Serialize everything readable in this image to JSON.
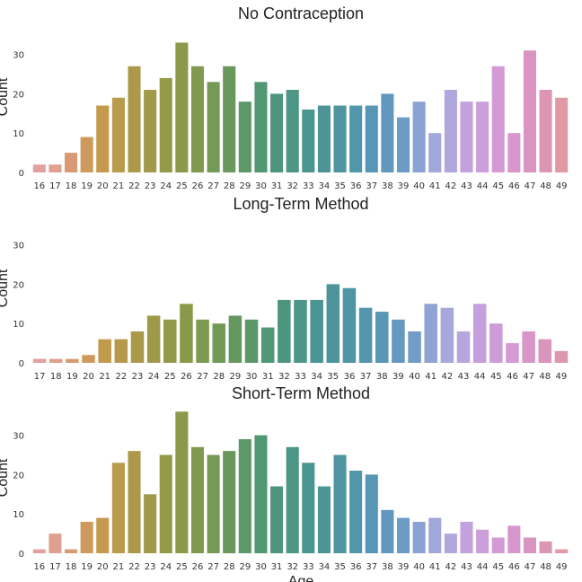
{
  "chart_data": [
    {
      "type": "bar",
      "title": "No Contraception",
      "xlabel": "",
      "ylabel": "Count",
      "ylim": [
        0,
        38
      ],
      "yticks": [
        0,
        10,
        20,
        30
      ],
      "grid": false,
      "categories": [
        "16",
        "17",
        "18",
        "19",
        "20",
        "21",
        "22",
        "23",
        "24",
        "25",
        "26",
        "27",
        "28",
        "29",
        "30",
        "31",
        "32",
        "33",
        "34",
        "35",
        "36",
        "37",
        "38",
        "39",
        "40",
        "41",
        "42",
        "43",
        "44",
        "45",
        "46",
        "47",
        "48",
        "49"
      ],
      "values": [
        2,
        2,
        5,
        9,
        17,
        19,
        27,
        21,
        24,
        33,
        27,
        23,
        27,
        18,
        23,
        20,
        21,
        16,
        17,
        17,
        17,
        17,
        20,
        14,
        18,
        10,
        21,
        18,
        18,
        27,
        10,
        31,
        21,
        19
      ],
      "colors": [
        "#e3a0a1",
        "#e0a08f",
        "#d89a74",
        "#ce9a5c",
        "#c49a4d",
        "#b89b4b",
        "#ac9a4a",
        "#a09a49",
        "#959a49",
        "#8b9a49",
        "#7f9a4f",
        "#759a55",
        "#68985c",
        "#5c9868",
        "#519772",
        "#4d967c",
        "#4c9686",
        "#4b9590",
        "#4d9498",
        "#4f94a1",
        "#5196aa",
        "#5796b4",
        "#6298bd",
        "#6e9ac6",
        "#8ba3d2",
        "#a2a7da",
        "#b0a7dd",
        "#c2a1dc",
        "#cc9edb",
        "#d39ad6",
        "#d897cc",
        "#d995c2",
        "#dc96b3",
        "#df9aa6"
      ]
    },
    {
      "type": "bar",
      "title": "Long-Term Method",
      "xlabel": "",
      "ylabel": "Count",
      "ylim": [
        0,
        38
      ],
      "yticks": [
        0,
        10,
        20,
        30
      ],
      "grid": false,
      "categories": [
        "17",
        "18",
        "19",
        "20",
        "21",
        "22",
        "23",
        "24",
        "25",
        "26",
        "27",
        "28",
        "29",
        "30",
        "31",
        "32",
        "33",
        "34",
        "35",
        "36",
        "37",
        "38",
        "39",
        "40",
        "41",
        "42",
        "43",
        "44",
        "45",
        "46",
        "47",
        "48",
        "49"
      ],
      "values": [
        1,
        1,
        1,
        2,
        6,
        6,
        8,
        12,
        11,
        15,
        11,
        10,
        12,
        11,
        9,
        16,
        16,
        16,
        20,
        19,
        14,
        13,
        11,
        8,
        15,
        14,
        8,
        15,
        10,
        5,
        8,
        6,
        3
      ],
      "colors": [
        "#e3a0a1",
        "#df9f8c",
        "#d79b72",
        "#cd9a5b",
        "#c29a4c",
        "#b69a4b",
        "#aa9a4a",
        "#9e9a49",
        "#939a49",
        "#889a49",
        "#7c9a50",
        "#729a57",
        "#65985f",
        "#5a986a",
        "#509775",
        "#4c967f",
        "#4c9689",
        "#4b9593",
        "#4d949b",
        "#5095a4",
        "#5396ae",
        "#5a97b7",
        "#6599c0",
        "#739cc9",
        "#90a4d3",
        "#a6a8db",
        "#b6a6dd",
        "#c6a0dc",
        "#cf9cda",
        "#d599d3",
        "#d996c8",
        "#da95bd",
        "#dd97b0"
      ]
    },
    {
      "type": "bar",
      "title": "Short-Term Method",
      "xlabel": "Age",
      "ylabel": "Count",
      "ylim": [
        0,
        38
      ],
      "yticks": [
        0,
        10,
        20,
        30
      ],
      "grid": false,
      "categories": [
        "16",
        "17",
        "18",
        "19",
        "20",
        "21",
        "22",
        "23",
        "24",
        "25",
        "26",
        "27",
        "28",
        "29",
        "30",
        "31",
        "32",
        "33",
        "34",
        "35",
        "36",
        "37",
        "38",
        "39",
        "40",
        "41",
        "42",
        "43",
        "44",
        "45",
        "46",
        "47",
        "48",
        "49"
      ],
      "values": [
        1,
        5,
        1,
        8,
        9,
        23,
        26,
        15,
        25,
        36,
        27,
        25,
        26,
        29,
        30,
        17,
        27,
        23,
        17,
        25,
        21,
        20,
        11,
        9,
        8,
        9,
        5,
        8,
        6,
        4,
        7,
        4,
        3,
        1
      ],
      "colors": [
        "#e3a0a1",
        "#e0a08f",
        "#d89a74",
        "#ce9a5c",
        "#c49a4d",
        "#b89b4b",
        "#ac9a4a",
        "#a09a49",
        "#959a49",
        "#8b9a49",
        "#7f9a4f",
        "#759a55",
        "#68985c",
        "#5c9868",
        "#519772",
        "#4d967c",
        "#4c9686",
        "#4b9590",
        "#4d9498",
        "#4f94a1",
        "#5196aa",
        "#5796b4",
        "#6298bd",
        "#6e9ac6",
        "#8ba3d2",
        "#a2a7da",
        "#b0a7dd",
        "#c2a1dc",
        "#cc9edb",
        "#d39ad6",
        "#d897cc",
        "#d995c2",
        "#dc96b3",
        "#df9aa6"
      ]
    }
  ]
}
